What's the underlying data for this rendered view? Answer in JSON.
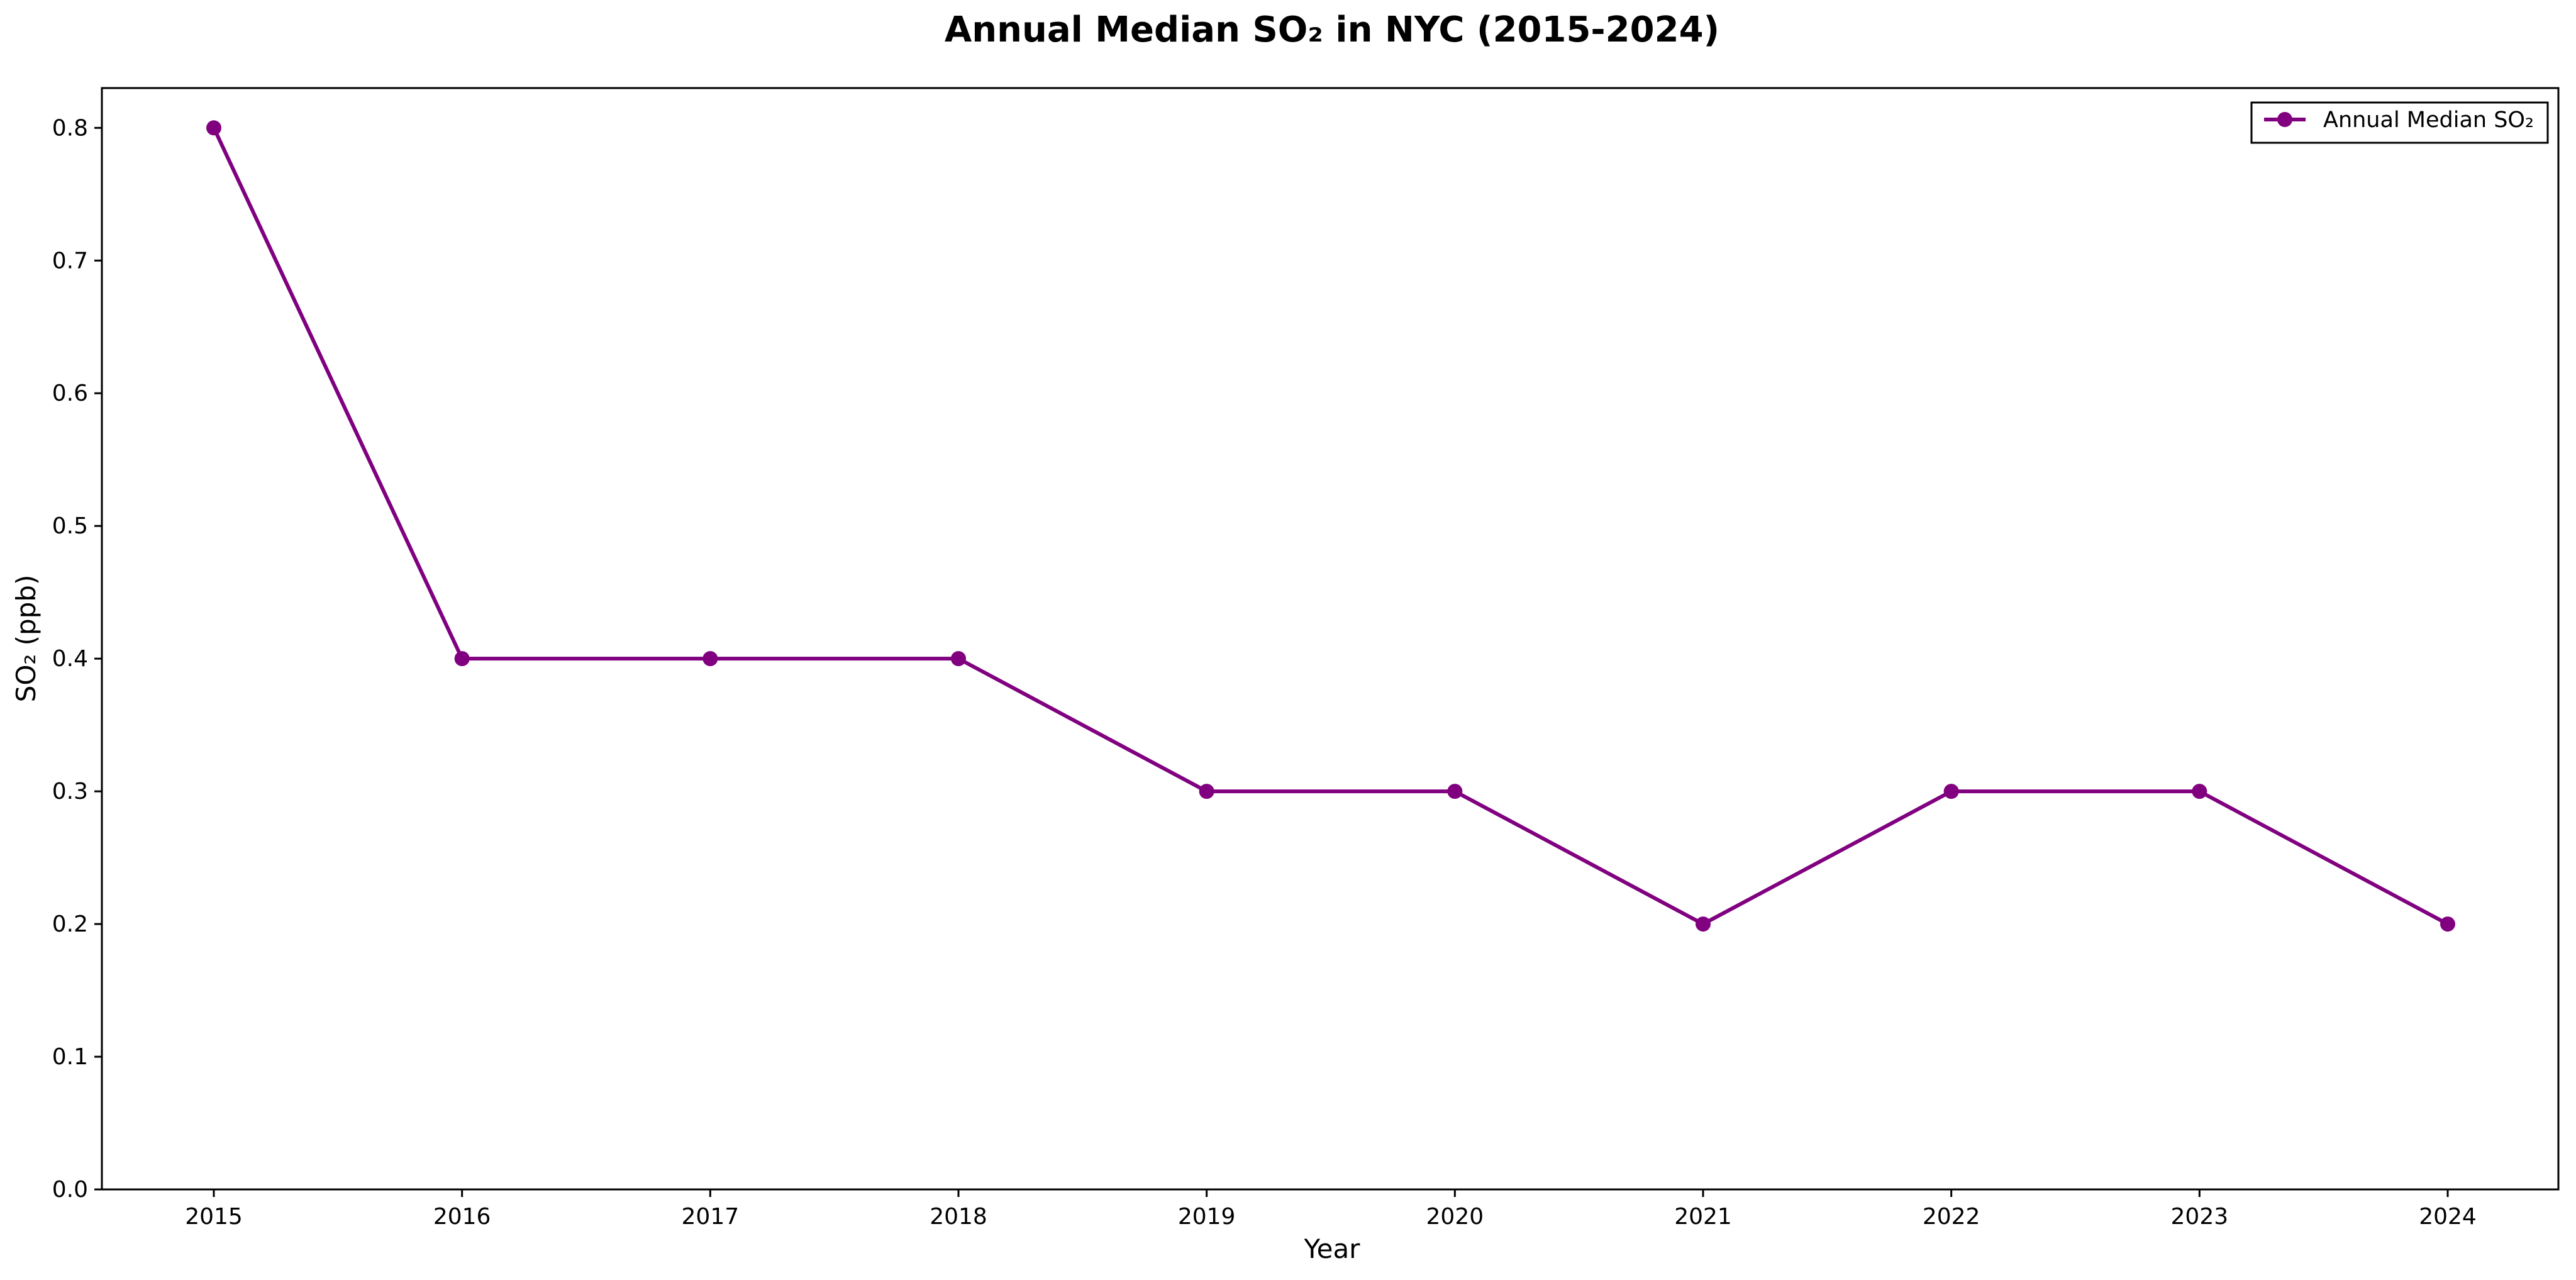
{
  "chart_data": {
    "type": "line",
    "title": "Annual Median SO₂ in NYC (2015-2024)",
    "xlabel": "Year",
    "ylabel": "SO₂ (ppb)",
    "x": [
      2015,
      2016,
      2017,
      2018,
      2019,
      2020,
      2021,
      2022,
      2023,
      2024
    ],
    "x_tick_labels": [
      "2015",
      "2016",
      "2017",
      "2018",
      "2019",
      "2020",
      "2021",
      "2022",
      "2023",
      "2024"
    ],
    "ylim": [
      0.0,
      0.83
    ],
    "y_ticks": [
      0.0,
      0.1,
      0.2,
      0.3,
      0.4,
      0.5,
      0.6,
      0.7,
      0.8
    ],
    "y_tick_labels": [
      "0.0",
      "0.1",
      "0.2",
      "0.3",
      "0.4",
      "0.5",
      "0.6",
      "0.7",
      "0.8"
    ],
    "grid": false,
    "legend_position": "top-right",
    "series": [
      {
        "name": "Annual Median SO₂",
        "color": "#800080",
        "marker": "circle",
        "values": [
          0.8,
          0.4,
          0.4,
          0.4,
          0.3,
          0.3,
          0.2,
          0.3,
          0.3,
          0.2
        ]
      }
    ]
  }
}
